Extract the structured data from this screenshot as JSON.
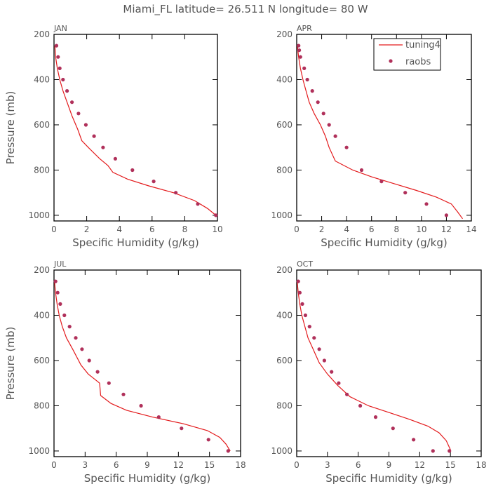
{
  "title": "Miami_FL   latitude= 26.511 N longitude= 80 W",
  "colors": {
    "model": "#e31a1c",
    "obs": "#b0305a",
    "axis": "#000000",
    "text": "#555555"
  },
  "legend": {
    "model_label": "tuning4",
    "obs_label": "raobs",
    "placement": "top-right of APR panel"
  },
  "chart_data": [
    {
      "type": "line",
      "panel": "JAN",
      "xlabel": "Specific Humidity (g/kg)",
      "ylabel": "Pressure (mb)",
      "xlim": [
        0,
        10
      ],
      "xticks": [
        0,
        2,
        4,
        6,
        8,
        10
      ],
      "ylim": [
        200,
        1025
      ],
      "yticks": [
        200,
        400,
        600,
        800,
        1000
      ],
      "y_inverted": true,
      "grid": false,
      "series": [
        {
          "name": "tuning4",
          "style": "line",
          "x": [
            0.05,
            0.1,
            0.2,
            0.35,
            0.55,
            0.8,
            1.1,
            1.45,
            1.7,
            2.1,
            2.8,
            3.3,
            3.6,
            4.5,
            5.8,
            7.3,
            8.6,
            9.4,
            9.9
          ],
          "y": [
            250,
            300,
            350,
            400,
            450,
            500,
            560,
            620,
            670,
            700,
            750,
            780,
            810,
            840,
            870,
            900,
            935,
            970,
            1000
          ]
        },
        {
          "name": "raobs",
          "style": "points",
          "x": [
            0.15,
            0.25,
            0.35,
            0.55,
            0.8,
            1.1,
            1.5,
            1.95,
            2.45,
            3.0,
            3.75,
            4.8,
            6.1,
            7.45,
            8.8,
            9.9
          ],
          "y": [
            250,
            300,
            350,
            400,
            450,
            500,
            550,
            600,
            650,
            700,
            750,
            800,
            850,
            900,
            950,
            1000
          ]
        }
      ]
    },
    {
      "type": "line",
      "panel": "APR",
      "xlabel": "Specific Humidity (g/kg)",
      "ylabel": "",
      "xlim": [
        0,
        14
      ],
      "xticks": [
        0,
        2,
        4,
        6,
        8,
        10,
        12,
        14
      ],
      "ylim": [
        200,
        1025
      ],
      "yticks": [
        200,
        400,
        600,
        800,
        1000
      ],
      "y_inverted": true,
      "grid": false,
      "series": [
        {
          "name": "tuning4",
          "style": "line",
          "x": [
            0.05,
            0.15,
            0.3,
            0.5,
            0.75,
            1.0,
            1.4,
            1.9,
            2.3,
            2.6,
            3.1,
            4.5,
            6.0,
            7.8,
            9.6,
            11.2,
            12.4,
            12.9,
            13.3
          ],
          "y": [
            250,
            300,
            350,
            400,
            450,
            500,
            550,
            600,
            650,
            700,
            760,
            800,
            830,
            860,
            890,
            920,
            950,
            985,
            1015
          ]
        },
        {
          "name": "raobs",
          "style": "points",
          "x": [
            0.15,
            0.2,
            0.3,
            0.6,
            0.85,
            1.25,
            1.7,
            2.15,
            2.6,
            3.1,
            4.0,
            5.2,
            6.8,
            8.7,
            10.4,
            12.0
          ],
          "y": [
            250,
            270,
            300,
            350,
            400,
            450,
            500,
            550,
            600,
            650,
            700,
            800,
            850,
            900,
            950,
            1000
          ]
        }
      ]
    },
    {
      "type": "line",
      "panel": "JUL",
      "xlabel": "Specific Humidity (g/kg)",
      "ylabel": "Pressure (mb)",
      "xlim": [
        0,
        18
      ],
      "xticks": [
        0,
        3,
        6,
        9,
        12,
        15,
        18
      ],
      "ylim": [
        200,
        1025
      ],
      "yticks": [
        200,
        400,
        600,
        800,
        1000
      ],
      "y_inverted": true,
      "grid": false,
      "series": [
        {
          "name": "tuning4",
          "style": "line",
          "x": [
            0.05,
            0.15,
            0.3,
            0.5,
            0.8,
            1.2,
            1.8,
            2.6,
            3.3,
            4.4,
            4.5,
            5.5,
            7.0,
            9.5,
            12.5,
            14.8,
            16.0,
            16.6,
            17.0
          ],
          "y": [
            250,
            300,
            350,
            400,
            450,
            500,
            550,
            620,
            660,
            700,
            755,
            790,
            820,
            850,
            880,
            910,
            940,
            970,
            1000
          ]
        },
        {
          "name": "raobs",
          "style": "points",
          "x": [
            0.15,
            0.35,
            0.6,
            1.0,
            1.5,
            2.1,
            2.7,
            3.4,
            4.2,
            5.3,
            6.7,
            8.4,
            10.1,
            12.3,
            14.9,
            16.8
          ],
          "y": [
            250,
            300,
            350,
            400,
            450,
            500,
            550,
            600,
            650,
            700,
            750,
            800,
            850,
            900,
            950,
            1000
          ]
        }
      ]
    },
    {
      "type": "line",
      "panel": "OCT",
      "xlabel": "Specific Humidity (g/kg)",
      "ylabel": "",
      "xlim": [
        0,
        18
      ],
      "xticks": [
        0,
        3,
        6,
        9,
        12,
        15,
        18
      ],
      "ylim": [
        200,
        1025
      ],
      "yticks": [
        200,
        400,
        600,
        800,
        1000
      ],
      "y_inverted": true,
      "grid": false,
      "series": [
        {
          "name": "tuning4",
          "style": "line",
          "x": [
            0.05,
            0.15,
            0.3,
            0.5,
            0.8,
            1.1,
            1.6,
            2.2,
            3.0,
            4.0,
            5.2,
            7.0,
            9.0,
            11.0,
            12.8,
            13.9,
            14.6,
            15.0
          ],
          "y": [
            250,
            300,
            350,
            400,
            450,
            500,
            550,
            610,
            660,
            710,
            760,
            800,
            830,
            860,
            890,
            920,
            955,
            995
          ]
        },
        {
          "name": "raobs",
          "style": "points",
          "x": [
            0.15,
            0.3,
            0.55,
            0.85,
            1.25,
            1.7,
            2.2,
            2.7,
            3.4,
            4.1,
            4.9,
            6.2,
            7.7,
            9.4,
            11.4,
            13.3,
            14.9
          ],
          "y": [
            250,
            300,
            350,
            400,
            450,
            500,
            550,
            600,
            650,
            700,
            750,
            800,
            850,
            900,
            950,
            1000,
            1000
          ]
        }
      ]
    }
  ]
}
